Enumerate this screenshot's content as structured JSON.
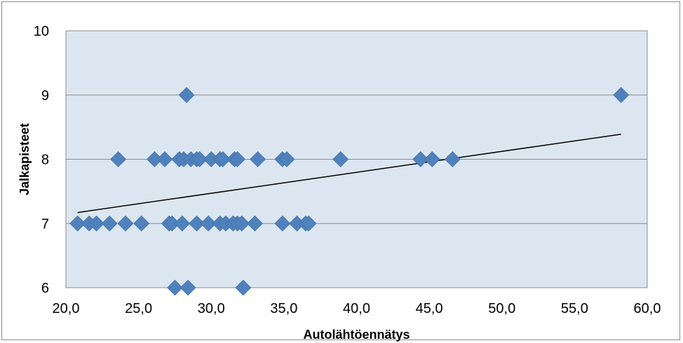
{
  "chart_data": {
    "type": "scatter",
    "xlabel": "Autolähtöennätys",
    "ylabel": "Jalkapisteet",
    "xlim": [
      20.0,
      60.0
    ],
    "ylim": [
      6,
      10
    ],
    "x_ticks": [
      "20,0",
      "25,0",
      "30,0",
      "35,0",
      "40,0",
      "45,0",
      "50,0",
      "55,0",
      "60,0"
    ],
    "y_ticks": [
      "6",
      "7",
      "8",
      "9",
      "10"
    ],
    "grid": "horizontal",
    "legend": "none",
    "colors": {
      "marker": "#4f81bd",
      "plot_area": "#dce6f1",
      "trendline": "#000000",
      "gridline": "#8c8c8c"
    },
    "series": [
      {
        "marker": "diamond",
        "points": [
          [
            20.8,
            7
          ],
          [
            21.6,
            7
          ],
          [
            22.1,
            7
          ],
          [
            23.0,
            7
          ],
          [
            24.1,
            7
          ],
          [
            25.2,
            7
          ],
          [
            27.1,
            7
          ],
          [
            27.3,
            7
          ],
          [
            28.0,
            7
          ],
          [
            29.0,
            7
          ],
          [
            29.8,
            7
          ],
          [
            30.6,
            7
          ],
          [
            31.0,
            7
          ],
          [
            31.5,
            7
          ],
          [
            31.8,
            7
          ],
          [
            32.1,
            7
          ],
          [
            33.0,
            7
          ],
          [
            34.9,
            7
          ],
          [
            35.9,
            7
          ],
          [
            36.5,
            7
          ],
          [
            36.7,
            7
          ],
          [
            23.6,
            8
          ],
          [
            26.1,
            8
          ],
          [
            26.8,
            8
          ],
          [
            27.8,
            8
          ],
          [
            28.1,
            8
          ],
          [
            28.6,
            8
          ],
          [
            29.0,
            8
          ],
          [
            29.2,
            8
          ],
          [
            30.0,
            8
          ],
          [
            30.6,
            8
          ],
          [
            30.8,
            8
          ],
          [
            31.6,
            8
          ],
          [
            31.8,
            8
          ],
          [
            33.2,
            8
          ],
          [
            34.9,
            8
          ],
          [
            35.2,
            8
          ],
          [
            38.9,
            8
          ],
          [
            44.4,
            8
          ],
          [
            45.2,
            8
          ],
          [
            46.6,
            8
          ],
          [
            27.5,
            6
          ],
          [
            28.4,
            6
          ],
          [
            32.2,
            6
          ],
          [
            28.3,
            9
          ],
          [
            58.2,
            9
          ]
        ]
      }
    ],
    "trendline": {
      "type": "linear",
      "x": [
        20.8,
        58.2
      ],
      "y": [
        7.17,
        8.39
      ]
    }
  }
}
